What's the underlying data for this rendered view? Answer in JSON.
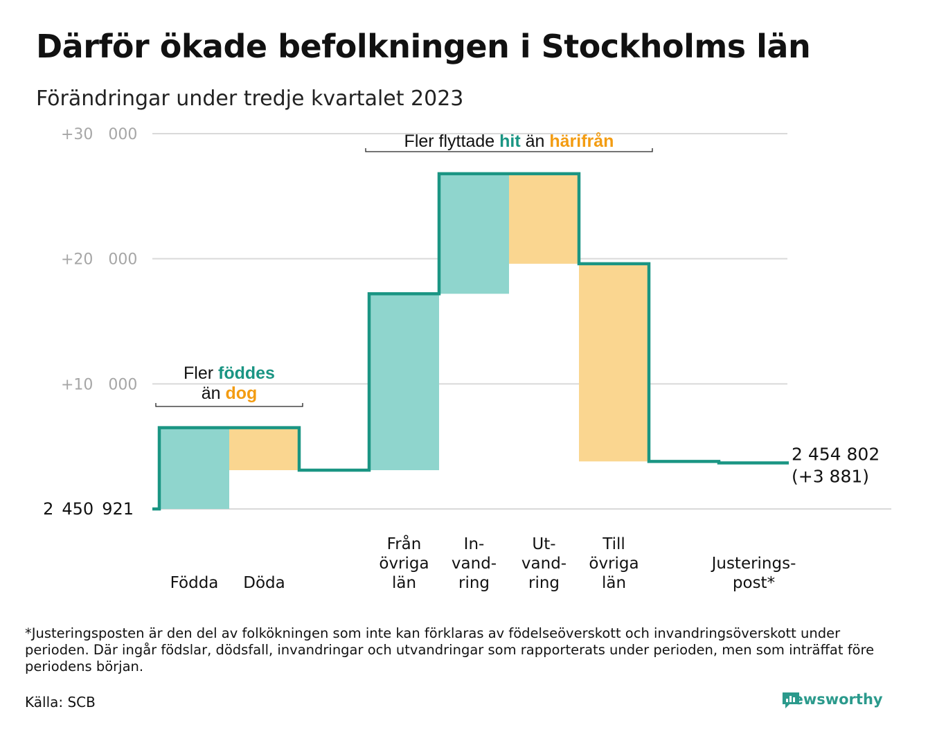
{
  "title": "Därför ökade befolkningen i Stockholms län",
  "subtitle": "Förändringar under tredje kvartalet 2023",
  "footnote": "*Justeringsposten är den del av folkökningen som inte kan förklaras av födelseöverskott och invandringsöverskott under perioden. Där ingår födslar, dödsfall, invandringar och utvandringar som rapporterats under perioden, men som inträffat före periodens början.",
  "source": "Källa: SCB",
  "brand": "Newsworthy",
  "chart_data": {
    "type": "waterfall",
    "start_value": 2450921,
    "start_label": "2 450 921",
    "end_label": "2 454 802",
    "end_change_label": "(+3 881)",
    "y_ticks": [
      {
        "value": 10000,
        "label": "+10 000"
      },
      {
        "value": 20000,
        "label": "+20 000"
      },
      {
        "value": 30000,
        "label": "+30 000"
      }
    ],
    "ylim": [
      0,
      30000
    ],
    "steps": [
      {
        "lines": [
          "Födda"
        ],
        "value": 6500,
        "kind": "in"
      },
      {
        "lines": [
          "Döda"
        ],
        "value": -3400,
        "kind": "out"
      },
      {
        "lines": [
          ""
        ],
        "value": 0,
        "kind": "none"
      },
      {
        "lines": [
          "Från",
          "övriga",
          "län"
        ],
        "value": 14100,
        "kind": "in"
      },
      {
        "lines": [
          "In-",
          "vand-",
          "ring"
        ],
        "value": 9600,
        "kind": "in"
      },
      {
        "lines": [
          "Ut-",
          "vand-",
          "ring"
        ],
        "value": -7200,
        "kind": "out"
      },
      {
        "lines": [
          "Till",
          "övriga",
          "län"
        ],
        "value": -15800,
        "kind": "out"
      },
      {
        "lines": [
          ""
        ],
        "value": 0,
        "kind": "none"
      },
      {
        "lines": [
          "Justerings-",
          "post*"
        ],
        "value": -119,
        "kind": "adjust"
      }
    ],
    "annotations": [
      {
        "lines": [
          [
            {
              "text": "Fler ",
              "c": "dark"
            },
            {
              "text": "föddes",
              "c": "teal"
            }
          ],
          [
            {
              "text": "än ",
              "c": "dark"
            },
            {
              "text": "dog",
              "c": "orange"
            }
          ]
        ],
        "from_step": 0,
        "to_step": 1
      },
      {
        "lines": [
          [
            {
              "text": "Fler flyttade ",
              "c": "dark"
            },
            {
              "text": "hit",
              "c": "teal"
            },
            {
              "text": " än ",
              "c": "dark"
            },
            {
              "text": "härifrån",
              "c": "orange"
            }
          ]
        ],
        "from_step": 3,
        "to_step": 6
      }
    ],
    "colors": {
      "inflow": "#8fd5cd",
      "outflow": "#fad690",
      "line": "#1a9583",
      "teal_text": "#1a9583",
      "orange_text": "#f39c12",
      "grid": "#d9d9d9",
      "tick": "#a6a6a6"
    }
  }
}
